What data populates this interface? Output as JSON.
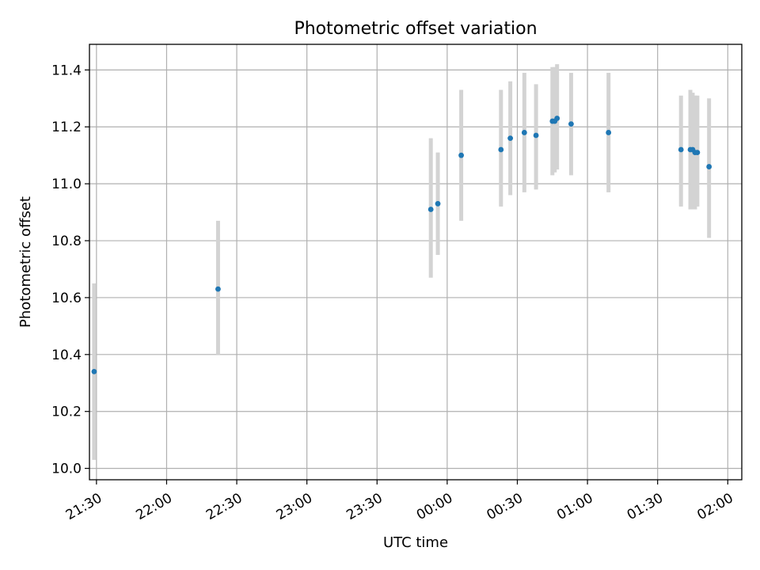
{
  "chart_data": {
    "type": "scatter",
    "title": "Photometric offset variation",
    "xlabel": "UTC time",
    "ylabel": "Photometric offset",
    "x_is_time": true,
    "xlim": [
      "21:27",
      "02:06"
    ],
    "ylim": [
      9.96,
      11.49
    ],
    "x_ticks": [
      "21:30",
      "22:00",
      "22:30",
      "23:00",
      "23:30",
      "00:00",
      "00:30",
      "01:00",
      "01:30",
      "02:00"
    ],
    "y_ticks": [
      10.0,
      10.2,
      10.4,
      10.6,
      10.8,
      11.0,
      11.2,
      11.4
    ],
    "grid": true,
    "marker_color": "#1f77b4",
    "errorbar_color": "#d3d3d3",
    "series": [
      {
        "x": [
          "21:29",
          "22:22",
          "23:53",
          "23:56",
          "00:06",
          "00:23",
          "00:27",
          "00:33",
          "00:38",
          "00:45",
          "00:46",
          "00:47",
          "00:53",
          "01:09",
          "01:40",
          "01:44",
          "01:45",
          "01:46",
          "01:47",
          "01:52"
        ],
        "y": [
          10.34,
          10.63,
          10.91,
          10.93,
          11.1,
          11.12,
          11.16,
          11.18,
          11.17,
          11.22,
          11.22,
          11.23,
          11.21,
          11.18,
          11.12,
          11.12,
          11.12,
          11.11,
          11.11,
          11.06
        ],
        "err_low": [
          10.03,
          10.4,
          10.67,
          10.75,
          10.87,
          10.92,
          10.96,
          10.97,
          10.98,
          11.03,
          11.04,
          11.05,
          11.03,
          10.97,
          10.92,
          10.91,
          10.91,
          10.91,
          10.92,
          10.81
        ],
        "err_high": [
          10.65,
          10.87,
          11.16,
          11.11,
          11.33,
          11.33,
          11.36,
          11.39,
          11.35,
          11.41,
          11.41,
          11.42,
          11.39,
          11.39,
          11.31,
          11.33,
          11.32,
          11.31,
          11.31,
          11.3
        ]
      }
    ]
  }
}
